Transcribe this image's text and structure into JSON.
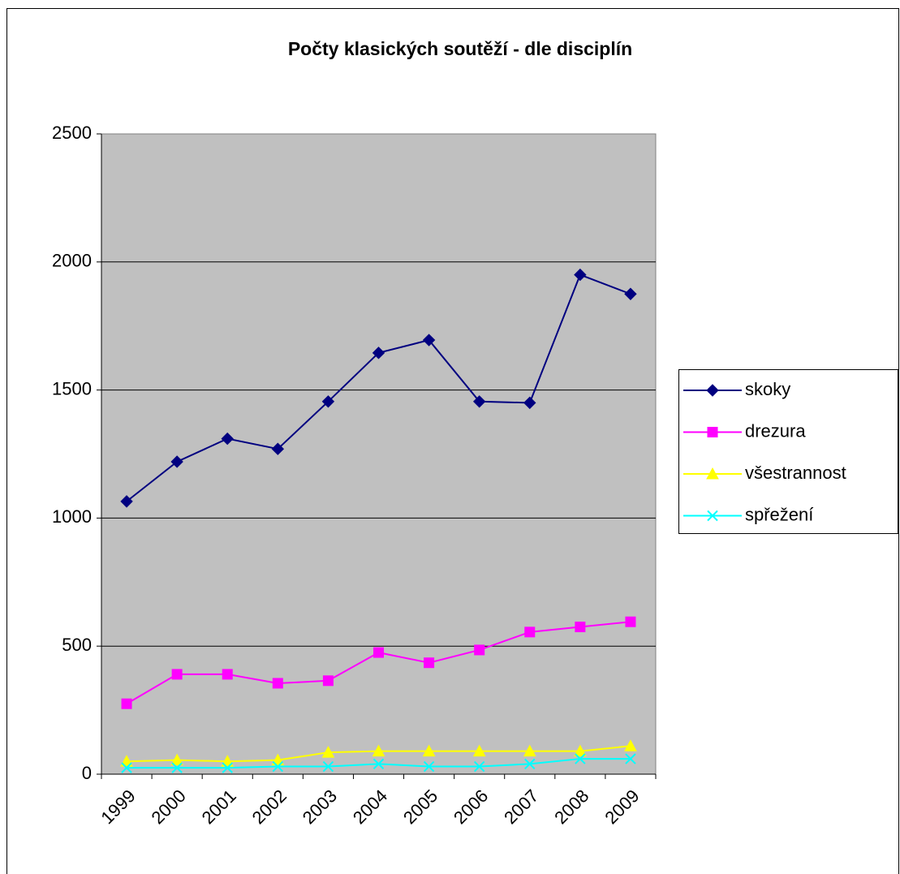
{
  "chart_data": {
    "type": "line",
    "title": "Počty klasických soutěží - dle disciplín",
    "categories": [
      "1999",
      "2000",
      "2001",
      "2002",
      "2003",
      "2004",
      "2005",
      "2006",
      "2007",
      "2008",
      "2009"
    ],
    "series": [
      {
        "name": "skoky",
        "color": "#000080",
        "marker": "diamond",
        "values": [
          1065,
          1220,
          1310,
          1270,
          1455,
          1645,
          1695,
          1455,
          1450,
          1950,
          1875
        ]
      },
      {
        "name": "drezura",
        "color": "#ff00ff",
        "marker": "square",
        "values": [
          275,
          390,
          390,
          355,
          365,
          475,
          435,
          485,
          555,
          575,
          595
        ]
      },
      {
        "name": "všestrannost",
        "color": "#ffff00",
        "marker": "triangle",
        "values": [
          50,
          55,
          50,
          55,
          85,
          90,
          90,
          90,
          90,
          90,
          110
        ]
      },
      {
        "name": "spřežení",
        "color": "#00ffff",
        "marker": "x",
        "values": [
          25,
          25,
          25,
          30,
          30,
          40,
          30,
          30,
          40,
          60,
          60
        ]
      }
    ],
    "ylim": [
      0,
      2500
    ],
    "yticks": [
      0,
      500,
      1000,
      1500,
      2000,
      2500
    ],
    "grid": true,
    "legend": "right"
  }
}
